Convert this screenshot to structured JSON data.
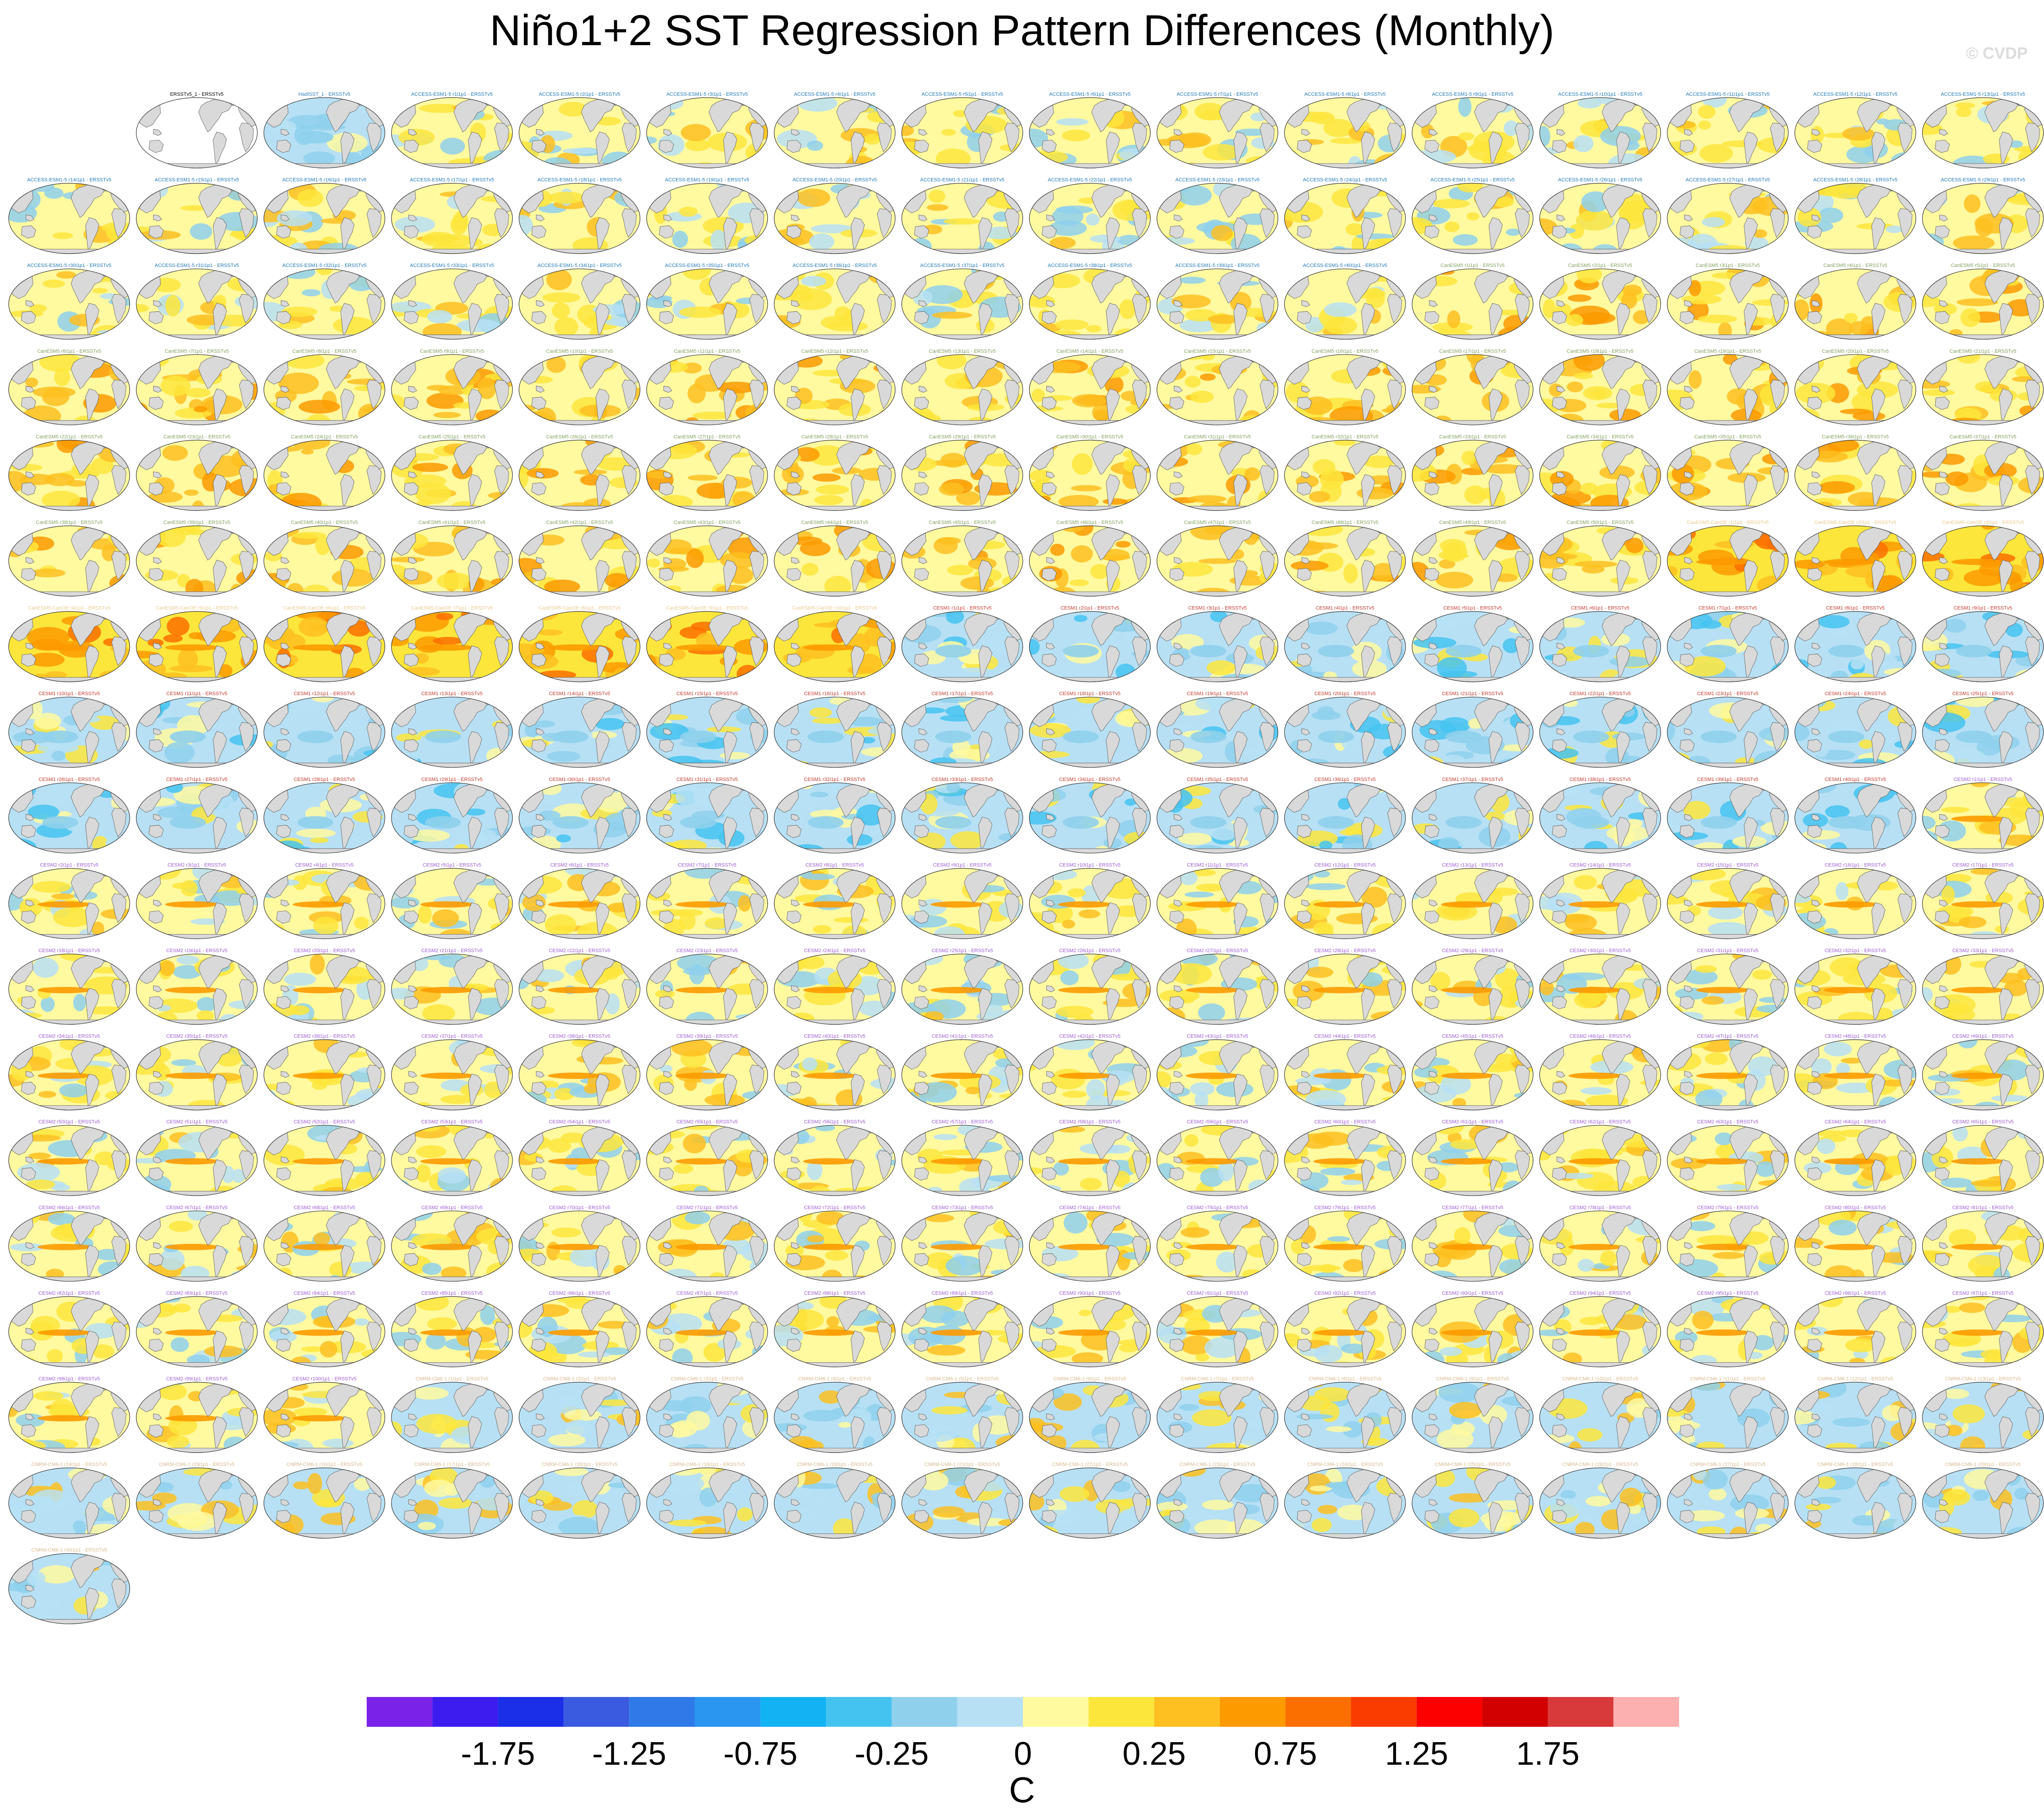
{
  "page": {
    "title": "Niño1+2 SST Regression Pattern Differences (Monthly)",
    "watermark": "© CVDP"
  },
  "chart_data": {
    "type": "heatmap",
    "title": "Niño1+2 SST Regression Pattern Differences (Monthly)",
    "grid": {
      "rows": 18,
      "cols": 16,
      "first_row_empty_cells": 1
    },
    "panels": [
      {
        "label": "ERSSTv5_1 - ERSSTv5",
        "style": "reference",
        "color": "#000000"
      },
      {
        "label": "HadISST_1 - ERSSTv5",
        "style": "cool",
        "color": "#2c7bb6"
      }
    ],
    "model_groups": [
      {
        "name": "ACCESS-ESM1-5",
        "count": 40,
        "label_color": "#1f78b4",
        "pattern": "mixed"
      },
      {
        "name": "CanESM5",
        "count": 50,
        "label_color": "#7fa05a",
        "pattern": "warm"
      },
      {
        "name": "CanESM5-CanOE",
        "count": 10,
        "label_color": "#e8c98a",
        "pattern": "warm-strong"
      },
      {
        "name": "CESM1",
        "count": 40,
        "label_color": "#c0392b",
        "pattern": "cool"
      },
      {
        "name": "CESM2",
        "count": 100,
        "label_color": "#9b59d0",
        "pattern": "equatorial-warm"
      },
      {
        "name": "CNRM-CM6-1",
        "count": 30,
        "label_color": "#d8b88a",
        "pattern": "mixed-cool"
      }
    ],
    "colorbar": {
      "units": "C",
      "boundaries": [
        -2,
        -1.75,
        -1.5,
        -1.25,
        -1,
        -0.75,
        -0.5,
        -0.25,
        -0.1,
        0,
        0.1,
        0.25,
        0.5,
        0.75,
        1,
        1.25,
        1.5,
        1.75,
        2
      ],
      "tick_labels": [
        "-1.75",
        "-1.25",
        "-0.75",
        "-0.25",
        "0",
        "0.25",
        "0.75",
        "1.25",
        "1.75"
      ],
      "tick_values": [
        -1.75,
        -1.25,
        -0.75,
        -0.25,
        0,
        0.25,
        0.75,
        1.25,
        1.75
      ],
      "colors": [
        "#7b22e8",
        "#3d1cf0",
        "#1b2ee8",
        "#3a5be0",
        "#2f7ae8",
        "#2b96f0",
        "#12b3f3",
        "#45c3f0",
        "#8fd0ec",
        "#b7e0f4",
        "#fff9a0",
        "#fde63c",
        "#fdc020",
        "#fc9a00",
        "#fb6f00",
        "#fb3c00",
        "#fc0000",
        "#d30000",
        "#d8393a",
        "#fdb0b0"
      ]
    }
  }
}
